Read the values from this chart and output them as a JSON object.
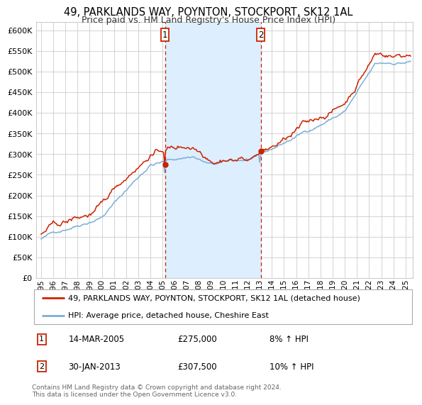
{
  "title": "49, PARKLANDS WAY, POYNTON, STOCKPORT, SK12 1AL",
  "subtitle": "Price paid vs. HM Land Registry's House Price Index (HPI)",
  "legend_line1": "49, PARKLANDS WAY, POYNTON, STOCKPORT, SK12 1AL (detached house)",
  "legend_line2": "HPI: Average price, detached house, Cheshire East",
  "annotation1_date": "14-MAR-2005",
  "annotation1_price": "£275,000",
  "annotation1_hpi": "8% ↑ HPI",
  "annotation2_date": "30-JAN-2013",
  "annotation2_price": "£307,500",
  "annotation2_hpi": "10% ↑ HPI",
  "footnote": "Contains HM Land Registry data © Crown copyright and database right 2024.\nThis data is licensed under the Open Government Licence v3.0.",
  "marker1_year": 2005.2,
  "marker2_year": 2013.08,
  "vline1_year": 2005.2,
  "vline2_year": 2013.08,
  "ylim": [
    0,
    620000
  ],
  "yticks": [
    0,
    50000,
    100000,
    150000,
    200000,
    250000,
    300000,
    350000,
    400000,
    450000,
    500000,
    550000,
    600000
  ],
  "hpi_color": "#7bafd4",
  "price_color": "#cc2200",
  "marker_color": "#cc2200",
  "vline_color": "#cc2200",
  "shade_color": "#ddeeff",
  "grid_color": "#cccccc",
  "bg_color": "#ffffff",
  "plot_bg_color": "#ffffff"
}
